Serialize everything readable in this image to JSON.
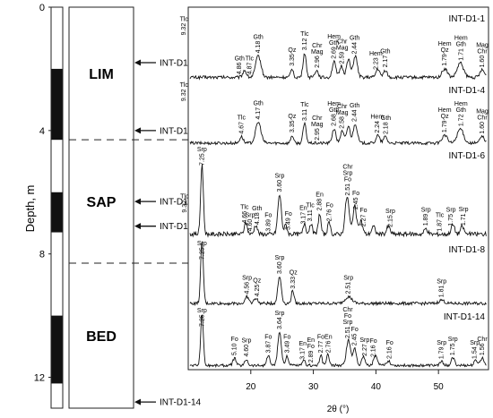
{
  "chart_data": {
    "type": "line",
    "depth_axis": {
      "label": "Depth, m",
      "ticks": [
        "0",
        "4",
        "8",
        "12"
      ],
      "range": [
        0,
        13
      ]
    },
    "zones": [
      {
        "label": "LIM",
        "from_m": 0,
        "to_m": 4.3
      },
      {
        "label": "SAP",
        "from_m": 4.3,
        "to_m": 8.3
      },
      {
        "label": "BED",
        "from_m": 8.3,
        "to_m": 13
      }
    ],
    "core_blocks_m": [
      [
        2.0,
        4.3
      ],
      [
        6.0,
        7.3
      ],
      [
        10.0,
        12.2
      ]
    ],
    "samples": [
      {
        "id": "INT-D1-1",
        "depth_m": 1.8
      },
      {
        "id": "INT-D1-4",
        "depth_m": 4.0
      },
      {
        "id": "INT-D1-6",
        "depth_m": 6.3
      },
      {
        "id": "INT-D1-8",
        "depth_m": 7.1
      },
      {
        "id": "INT-D1-14",
        "depth_m": 12.8
      }
    ],
    "x_axis": {
      "label": "2θ (°)",
      "ticks": [
        20,
        30,
        40,
        50
      ],
      "range": [
        10,
        58
      ]
    },
    "series": [
      {
        "name": "INT-D1-1",
        "base": 0.93,
        "peaks": [
          {
            "x": 9.32,
            "h": 0.55,
            "w": 0.35
          },
          {
            "x": 19.0,
            "h": 0.1,
            "w": 0.4
          },
          {
            "x": 21.2,
            "h": 0.3,
            "w": 0.6
          },
          {
            "x": 26.6,
            "h": 0.12,
            "w": 0.3
          },
          {
            "x": 28.6,
            "h": 0.34,
            "w": 0.35
          },
          {
            "x": 30.5,
            "h": 0.1,
            "w": 0.4
          },
          {
            "x": 33.3,
            "h": 0.22,
            "w": 0.4
          },
          {
            "x": 34.5,
            "h": 0.16,
            "w": 0.4
          },
          {
            "x": 35.6,
            "h": 0.26,
            "w": 0.4
          },
          {
            "x": 36.7,
            "h": 0.3,
            "w": 0.45
          },
          {
            "x": 40.3,
            "h": 0.12,
            "w": 0.4
          },
          {
            "x": 41.5,
            "h": 0.1,
            "w": 0.4
          },
          {
            "x": 51.0,
            "h": 0.12,
            "w": 0.6
          },
          {
            "x": 53.5,
            "h": 0.2,
            "w": 0.7
          },
          {
            "x": 57.0,
            "h": 0.1,
            "w": 0.5
          }
        ],
        "labels": [
          {
            "x": 9.32,
            "text": "Tlc",
            "sub": "9.32"
          },
          {
            "x": 18.2,
            "text": "Gth",
            "sub": "4.86"
          },
          {
            "x": 19.8,
            "text": "Tlc",
            "sub": "4.87"
          },
          {
            "x": 21.2,
            "text": "Gth",
            "sub": "4.18"
          },
          {
            "x": 26.6,
            "text": "Qz",
            "sub": "3.35"
          },
          {
            "x": 28.6,
            "text": "Tlc",
            "sub": "3.12"
          },
          {
            "x": 30.6,
            "text": "Chr Mag",
            "sub": "2.96"
          },
          {
            "x": 33.3,
            "text": "Hem Gth",
            "sub": "2.69"
          },
          {
            "x": 34.6,
            "text": "Chr Mag",
            "sub": "2.59"
          },
          {
            "x": 36.6,
            "text": "Gth",
            "sub": "2.44"
          },
          {
            "x": 40.0,
            "text": "Hem",
            "sub": "2.23"
          },
          {
            "x": 41.5,
            "text": "Gth",
            "sub": "2.17"
          },
          {
            "x": 51.0,
            "text": "Hem Qz",
            "sub": "1.79"
          },
          {
            "x": 53.6,
            "text": "Hem Gth",
            "sub": "1.71"
          },
          {
            "x": 57.0,
            "text": "Mag Chr",
            "sub": "1.60"
          }
        ]
      },
      {
        "name": "INT-D1-4",
        "base": 0.93,
        "peaks": [
          {
            "x": 9.32,
            "h": 0.6,
            "w": 0.35
          },
          {
            "x": 18.5,
            "h": 0.1,
            "w": 0.4
          },
          {
            "x": 21.2,
            "h": 0.32,
            "w": 0.6
          },
          {
            "x": 26.6,
            "h": 0.12,
            "w": 0.3
          },
          {
            "x": 28.6,
            "h": 0.3,
            "w": 0.35
          },
          {
            "x": 33.3,
            "h": 0.22,
            "w": 0.4
          },
          {
            "x": 34.6,
            "h": 0.18,
            "w": 0.4
          },
          {
            "x": 35.6,
            "h": 0.26,
            "w": 0.4
          },
          {
            "x": 36.7,
            "h": 0.3,
            "w": 0.45
          },
          {
            "x": 40.3,
            "h": 0.12,
            "w": 0.4
          },
          {
            "x": 41.5,
            "h": 0.1,
            "w": 0.4
          },
          {
            "x": 51.0,
            "h": 0.12,
            "w": 0.6
          },
          {
            "x": 53.5,
            "h": 0.22,
            "w": 0.7
          },
          {
            "x": 57.0,
            "h": 0.1,
            "w": 0.5
          }
        ],
        "labels": [
          {
            "x": 9.32,
            "text": "Tlc",
            "sub": "9.32"
          },
          {
            "x": 18.5,
            "text": "Tlc",
            "sub": "4.67"
          },
          {
            "x": 21.2,
            "text": "Gth",
            "sub": "4.17"
          },
          {
            "x": 26.6,
            "text": "Qz",
            "sub": "3.35"
          },
          {
            "x": 28.6,
            "text": "Tlc",
            "sub": "3.11"
          },
          {
            "x": 30.6,
            "text": "Chr Mag",
            "sub": "2.95"
          },
          {
            "x": 33.3,
            "text": "Hem Gth",
            "sub": "2.68"
          },
          {
            "x": 34.6,
            "text": "Chr Mag",
            "sub": "2.58"
          },
          {
            "x": 36.6,
            "text": "Gth",
            "sub": "2.44"
          },
          {
            "x": 40.2,
            "text": "Hem",
            "sub": "2.24"
          },
          {
            "x": 41.6,
            "text": "Gth",
            "sub": "2.18"
          },
          {
            "x": 51.0,
            "text": "Hem Qz",
            "sub": "1.79"
          },
          {
            "x": 53.6,
            "text": "Hem Gth",
            "sub": "1.72"
          },
          {
            "x": 57.0,
            "text": "Mag Chr",
            "sub": "1.60"
          }
        ]
      },
      {
        "name": "INT-D1-6",
        "base": 0.92,
        "peaks": [
          {
            "x": 9.4,
            "h": 0.2,
            "w": 0.35
          },
          {
            "x": 12.2,
            "h": 0.75,
            "w": 0.3
          },
          {
            "x": 19.2,
            "h": 0.12,
            "w": 0.35
          },
          {
            "x": 20.8,
            "h": 0.1,
            "w": 0.35
          },
          {
            "x": 24.6,
            "h": 0.42,
            "w": 0.4
          },
          {
            "x": 25.6,
            "h": 0.1,
            "w": 0.3
          },
          {
            "x": 28.6,
            "h": 0.12,
            "w": 0.3
          },
          {
            "x": 29.6,
            "h": 0.12,
            "w": 0.3
          },
          {
            "x": 31.0,
            "h": 0.22,
            "w": 0.3
          },
          {
            "x": 32.5,
            "h": 0.12,
            "w": 0.3
          },
          {
            "x": 35.4,
            "h": 0.4,
            "w": 0.45
          },
          {
            "x": 36.6,
            "h": 0.3,
            "w": 0.4
          },
          {
            "x": 37.6,
            "h": 0.14,
            "w": 0.4
          },
          {
            "x": 39.6,
            "h": 0.08,
            "w": 0.4
          },
          {
            "x": 42.0,
            "h": 0.08,
            "w": 0.4
          },
          {
            "x": 48.0,
            "h": 0.06,
            "w": 0.4
          },
          {
            "x": 52.3,
            "h": 0.1,
            "w": 0.4
          },
          {
            "x": 53.8,
            "h": 0.08,
            "w": 0.4
          }
        ],
        "labels": [
          {
            "x": 9.4,
            "text": "Tlc",
            "sub": "9.32"
          },
          {
            "x": 12.2,
            "text": "Srp",
            "sub": "7.25"
          },
          {
            "x": 19.0,
            "text": "Tlc",
            "sub": "4.66"
          },
          {
            "x": 19.9,
            "text": "Srp",
            "sub": "4.60"
          },
          {
            "x": 21.0,
            "text": "Gth",
            "sub": "4.18"
          },
          {
            "x": 22.8,
            "text": "Fo",
            "sub": "3.89"
          },
          {
            "x": 24.6,
            "text": "Srp",
            "sub": "3.60"
          },
          {
            "x": 26.0,
            "text": "Fo",
            "sub": "3.49"
          },
          {
            "x": 28.4,
            "text": "En",
            "sub": "3.17"
          },
          {
            "x": 29.5,
            "text": "Tlc",
            "sub": "3.11"
          },
          {
            "x": 31.0,
            "text": "En",
            "sub": "2.88"
          },
          {
            "x": 32.6,
            "text": "Fo",
            "sub": "2.76"
          },
          {
            "x": 35.5,
            "text": "Chr Srp Fo",
            "sub": "2.51"
          },
          {
            "x": 36.8,
            "text": "Fo",
            "sub": "2.45"
          },
          {
            "x": 38.0,
            "text": "Fo",
            "sub": "2.27"
          },
          {
            "x": 42.3,
            "text": "Srp",
            "sub": "2.15"
          },
          {
            "x": 48.0,
            "text": "Srp",
            "sub": "1.89"
          },
          {
            "x": 50.2,
            "text": "Tlc",
            "sub": "1.87"
          },
          {
            "x": 52.0,
            "text": "Srp",
            "sub": "1.75"
          },
          {
            "x": 54.0,
            "text": "Srp",
            "sub": "1.71"
          }
        ]
      },
      {
        "name": "INT-D1-8",
        "base": 0.92,
        "peaks": [
          {
            "x": 12.2,
            "h": 0.92,
            "w": 0.3
          },
          {
            "x": 19.4,
            "h": 0.1,
            "w": 0.4
          },
          {
            "x": 20.8,
            "h": 0.08,
            "w": 0.4
          },
          {
            "x": 24.6,
            "h": 0.4,
            "w": 0.4
          },
          {
            "x": 26.7,
            "h": 0.2,
            "w": 0.3
          },
          {
            "x": 35.6,
            "h": 0.1,
            "w": 0.8
          },
          {
            "x": 50.5,
            "h": 0.05,
            "w": 0.6
          }
        ],
        "labels": [
          {
            "x": 12.2,
            "text": "Srp",
            "sub": "7.25"
          },
          {
            "x": 19.4,
            "text": "Srp",
            "sub": "4.56"
          },
          {
            "x": 21.0,
            "text": "Qz",
            "sub": "4.25"
          },
          {
            "x": 24.6,
            "text": "Srp",
            "sub": "3.60"
          },
          {
            "x": 26.8,
            "text": "Qz",
            "sub": "3.33"
          },
          {
            "x": 35.6,
            "text": "Srp",
            "sub": "2.51"
          },
          {
            "x": 50.5,
            "text": "Srp",
            "sub": "1.81"
          }
        ]
      },
      {
        "name": "INT-D1-14",
        "base": 0.93,
        "peaks": [
          {
            "x": 12.2,
            "h": 0.85,
            "w": 0.3
          },
          {
            "x": 17.4,
            "h": 0.12,
            "w": 0.35
          },
          {
            "x": 19.3,
            "h": 0.1,
            "w": 0.35
          },
          {
            "x": 22.8,
            "h": 0.16,
            "w": 0.35
          },
          {
            "x": 24.6,
            "h": 0.55,
            "w": 0.4
          },
          {
            "x": 25.8,
            "h": 0.16,
            "w": 0.3
          },
          {
            "x": 28.5,
            "h": 0.08,
            "w": 0.3
          },
          {
            "x": 31.2,
            "h": 0.16,
            "w": 0.3
          },
          {
            "x": 32.3,
            "h": 0.18,
            "w": 0.3
          },
          {
            "x": 35.6,
            "h": 0.42,
            "w": 0.45
          },
          {
            "x": 36.6,
            "h": 0.28,
            "w": 0.4
          },
          {
            "x": 38.0,
            "h": 0.14,
            "w": 0.4
          },
          {
            "x": 39.9,
            "h": 0.16,
            "w": 0.4
          },
          {
            "x": 42.0,
            "h": 0.08,
            "w": 0.4
          },
          {
            "x": 50.5,
            "h": 0.06,
            "w": 0.4
          },
          {
            "x": 52.3,
            "h": 0.12,
            "w": 0.4
          },
          {
            "x": 56.0,
            "h": 0.08,
            "w": 0.4
          },
          {
            "x": 57.0,
            "h": 0.12,
            "w": 0.4
          }
        ],
        "labels": [
          {
            "x": 12.2,
            "text": "Srp",
            "sub": "7.25"
          },
          {
            "x": 17.4,
            "text": "Fo",
            "sub": "5.10"
          },
          {
            "x": 19.3,
            "text": "Srp",
            "sub": "4.60"
          },
          {
            "x": 22.8,
            "text": "Fo",
            "sub": "3.87"
          },
          {
            "x": 24.6,
            "text": "Srp",
            "sub": "3.64"
          },
          {
            "x": 25.8,
            "text": "Fo",
            "sub": "3.49"
          },
          {
            "x": 28.3,
            "text": "En",
            "sub": "3.17"
          },
          {
            "x": 29.6,
            "text": "En Fo",
            "sub": "2.89"
          },
          {
            "x": 31.2,
            "text": "Fo",
            "sub": "2.77"
          },
          {
            "x": 32.4,
            "text": "En",
            "sub": "2.76"
          },
          {
            "x": 35.5,
            "text": "Chr Fo Srp",
            "sub": "2.51"
          },
          {
            "x": 36.6,
            "text": "Fo",
            "sub": "2.45"
          },
          {
            "x": 38.2,
            "text": "Srp",
            "sub": "2.27"
          },
          {
            "x": 39.6,
            "text": "Fo",
            "sub": "2.16"
          },
          {
            "x": 42.2,
            "text": "Fo",
            "sub": "2.16"
          },
          {
            "x": 50.5,
            "text": "Srp",
            "sub": "1.79"
          },
          {
            "x": 52.3,
            "text": "Srp",
            "sub": "1.75"
          },
          {
            "x": 55.8,
            "text": "Srp",
            "sub": "1.54"
          },
          {
            "x": 57.0,
            "text": "Chr",
            "sub": "1.56"
          }
        ]
      }
    ]
  }
}
